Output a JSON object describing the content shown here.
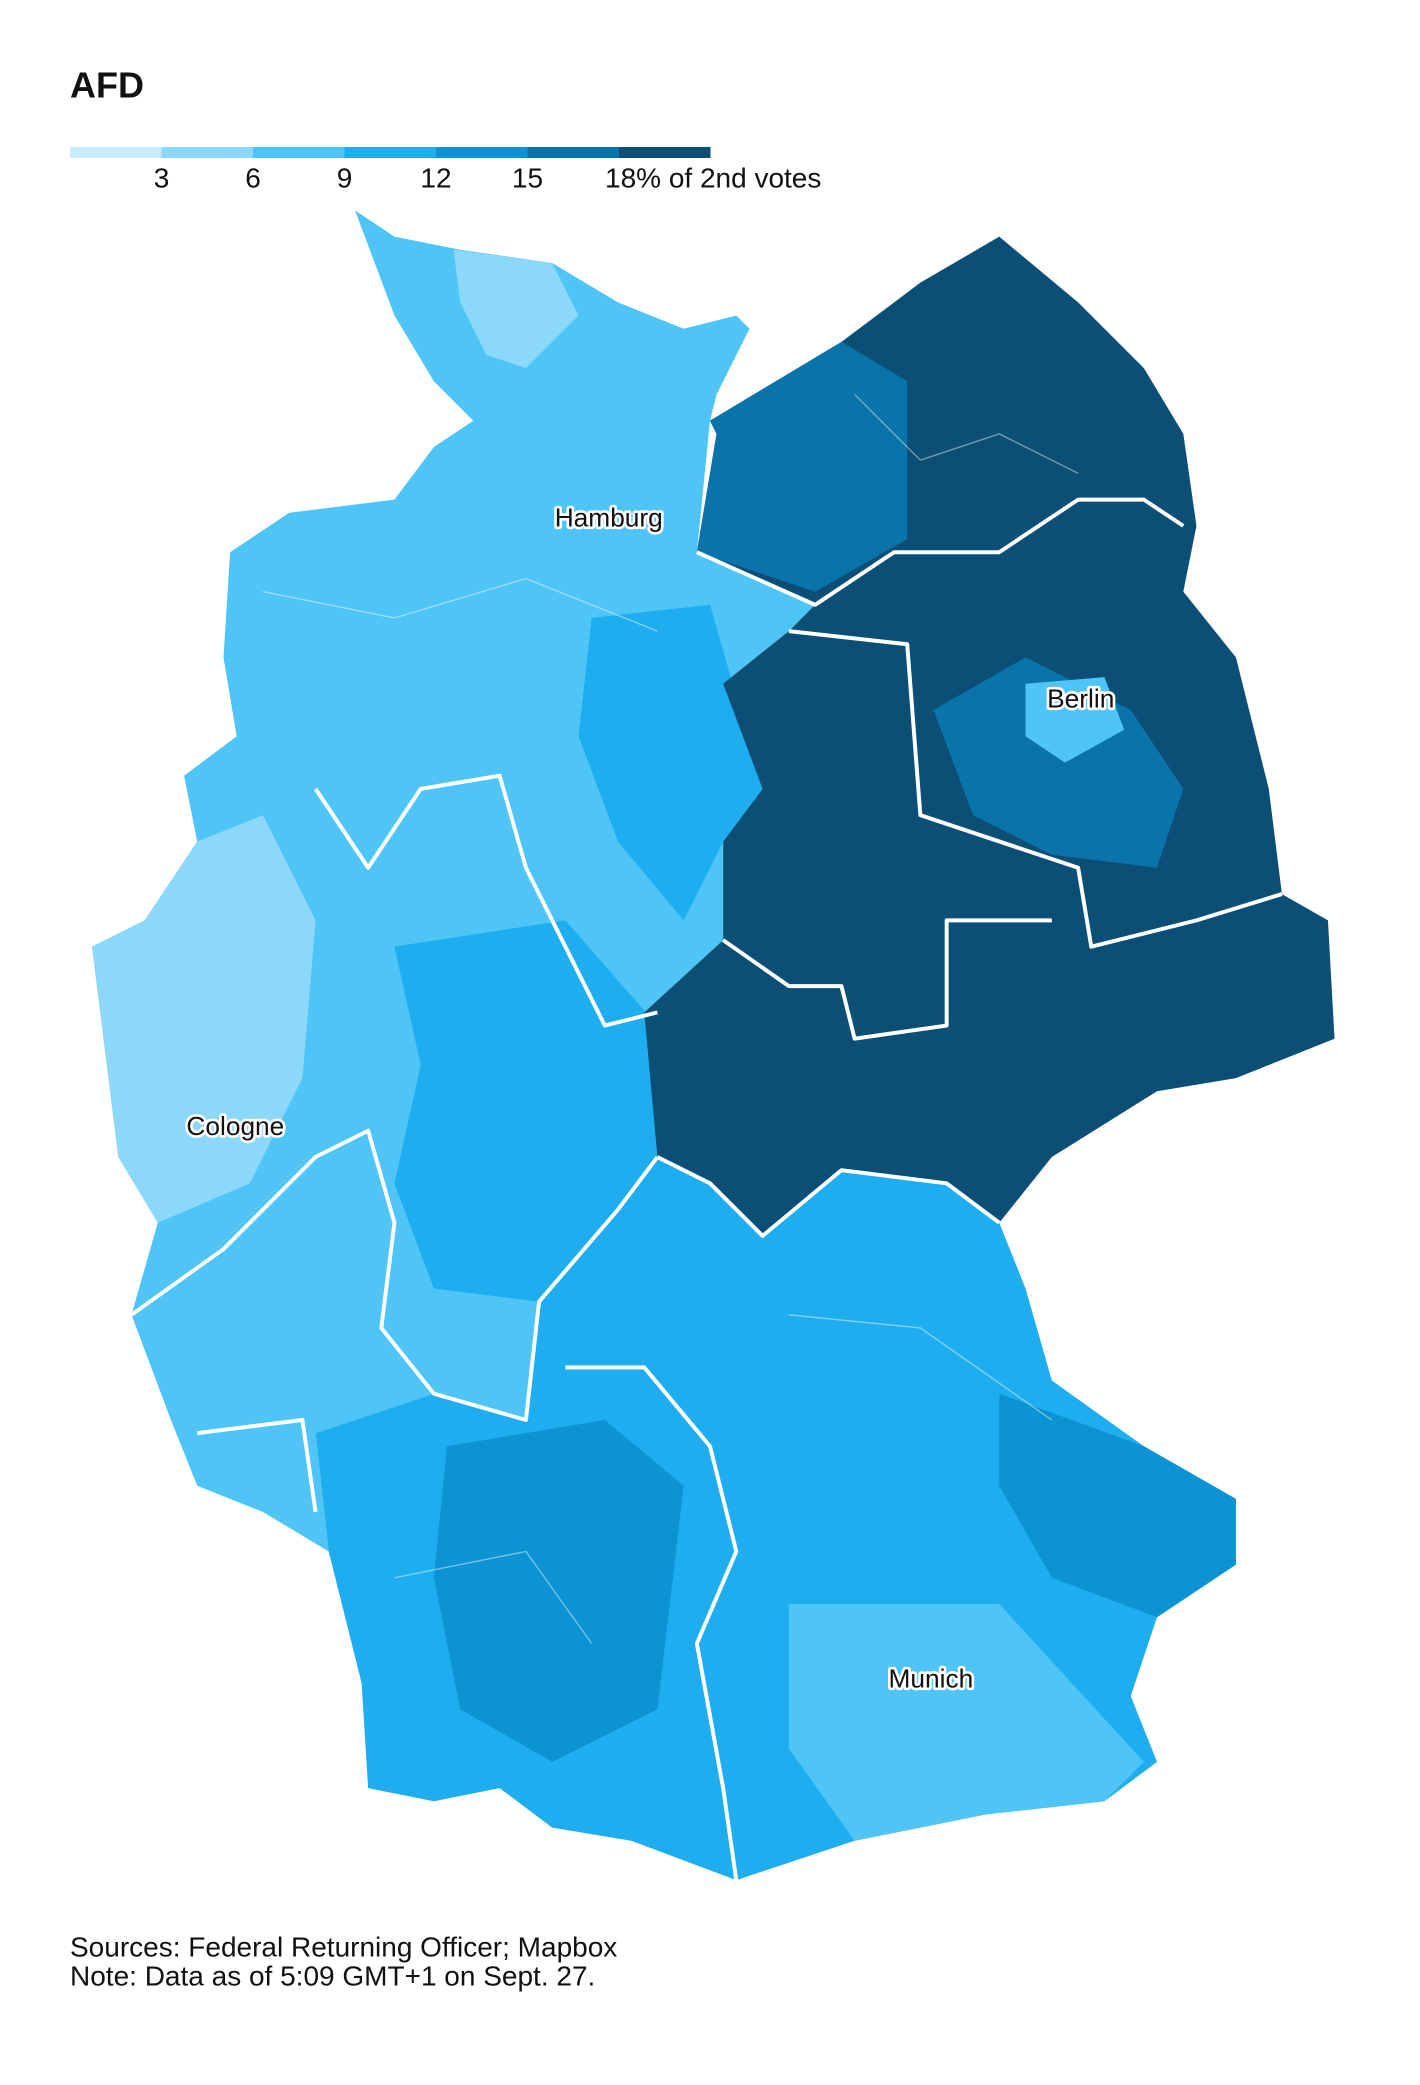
{
  "title": "AFD",
  "legend": {
    "colors": [
      "#c9ecfc",
      "#8bd8fb",
      "#4fc4f7",
      "#1eaef0",
      "#0c93d3",
      "#0a73aa",
      "#0b4f77"
    ],
    "ticks": [
      3,
      6,
      9,
      12,
      15,
      {
        "value": 18,
        "label": "18% of 2nd votes"
      }
    ]
  },
  "map": {
    "labels": [
      "Hamburg",
      "Berlin",
      "Cologne",
      "Munich"
    ]
  },
  "footer": {
    "sources": "Sources: Federal Returning Officer; Mapbox",
    "note": "Note: Data as of 5:09 GMT+1 on Sept. 27."
  }
}
